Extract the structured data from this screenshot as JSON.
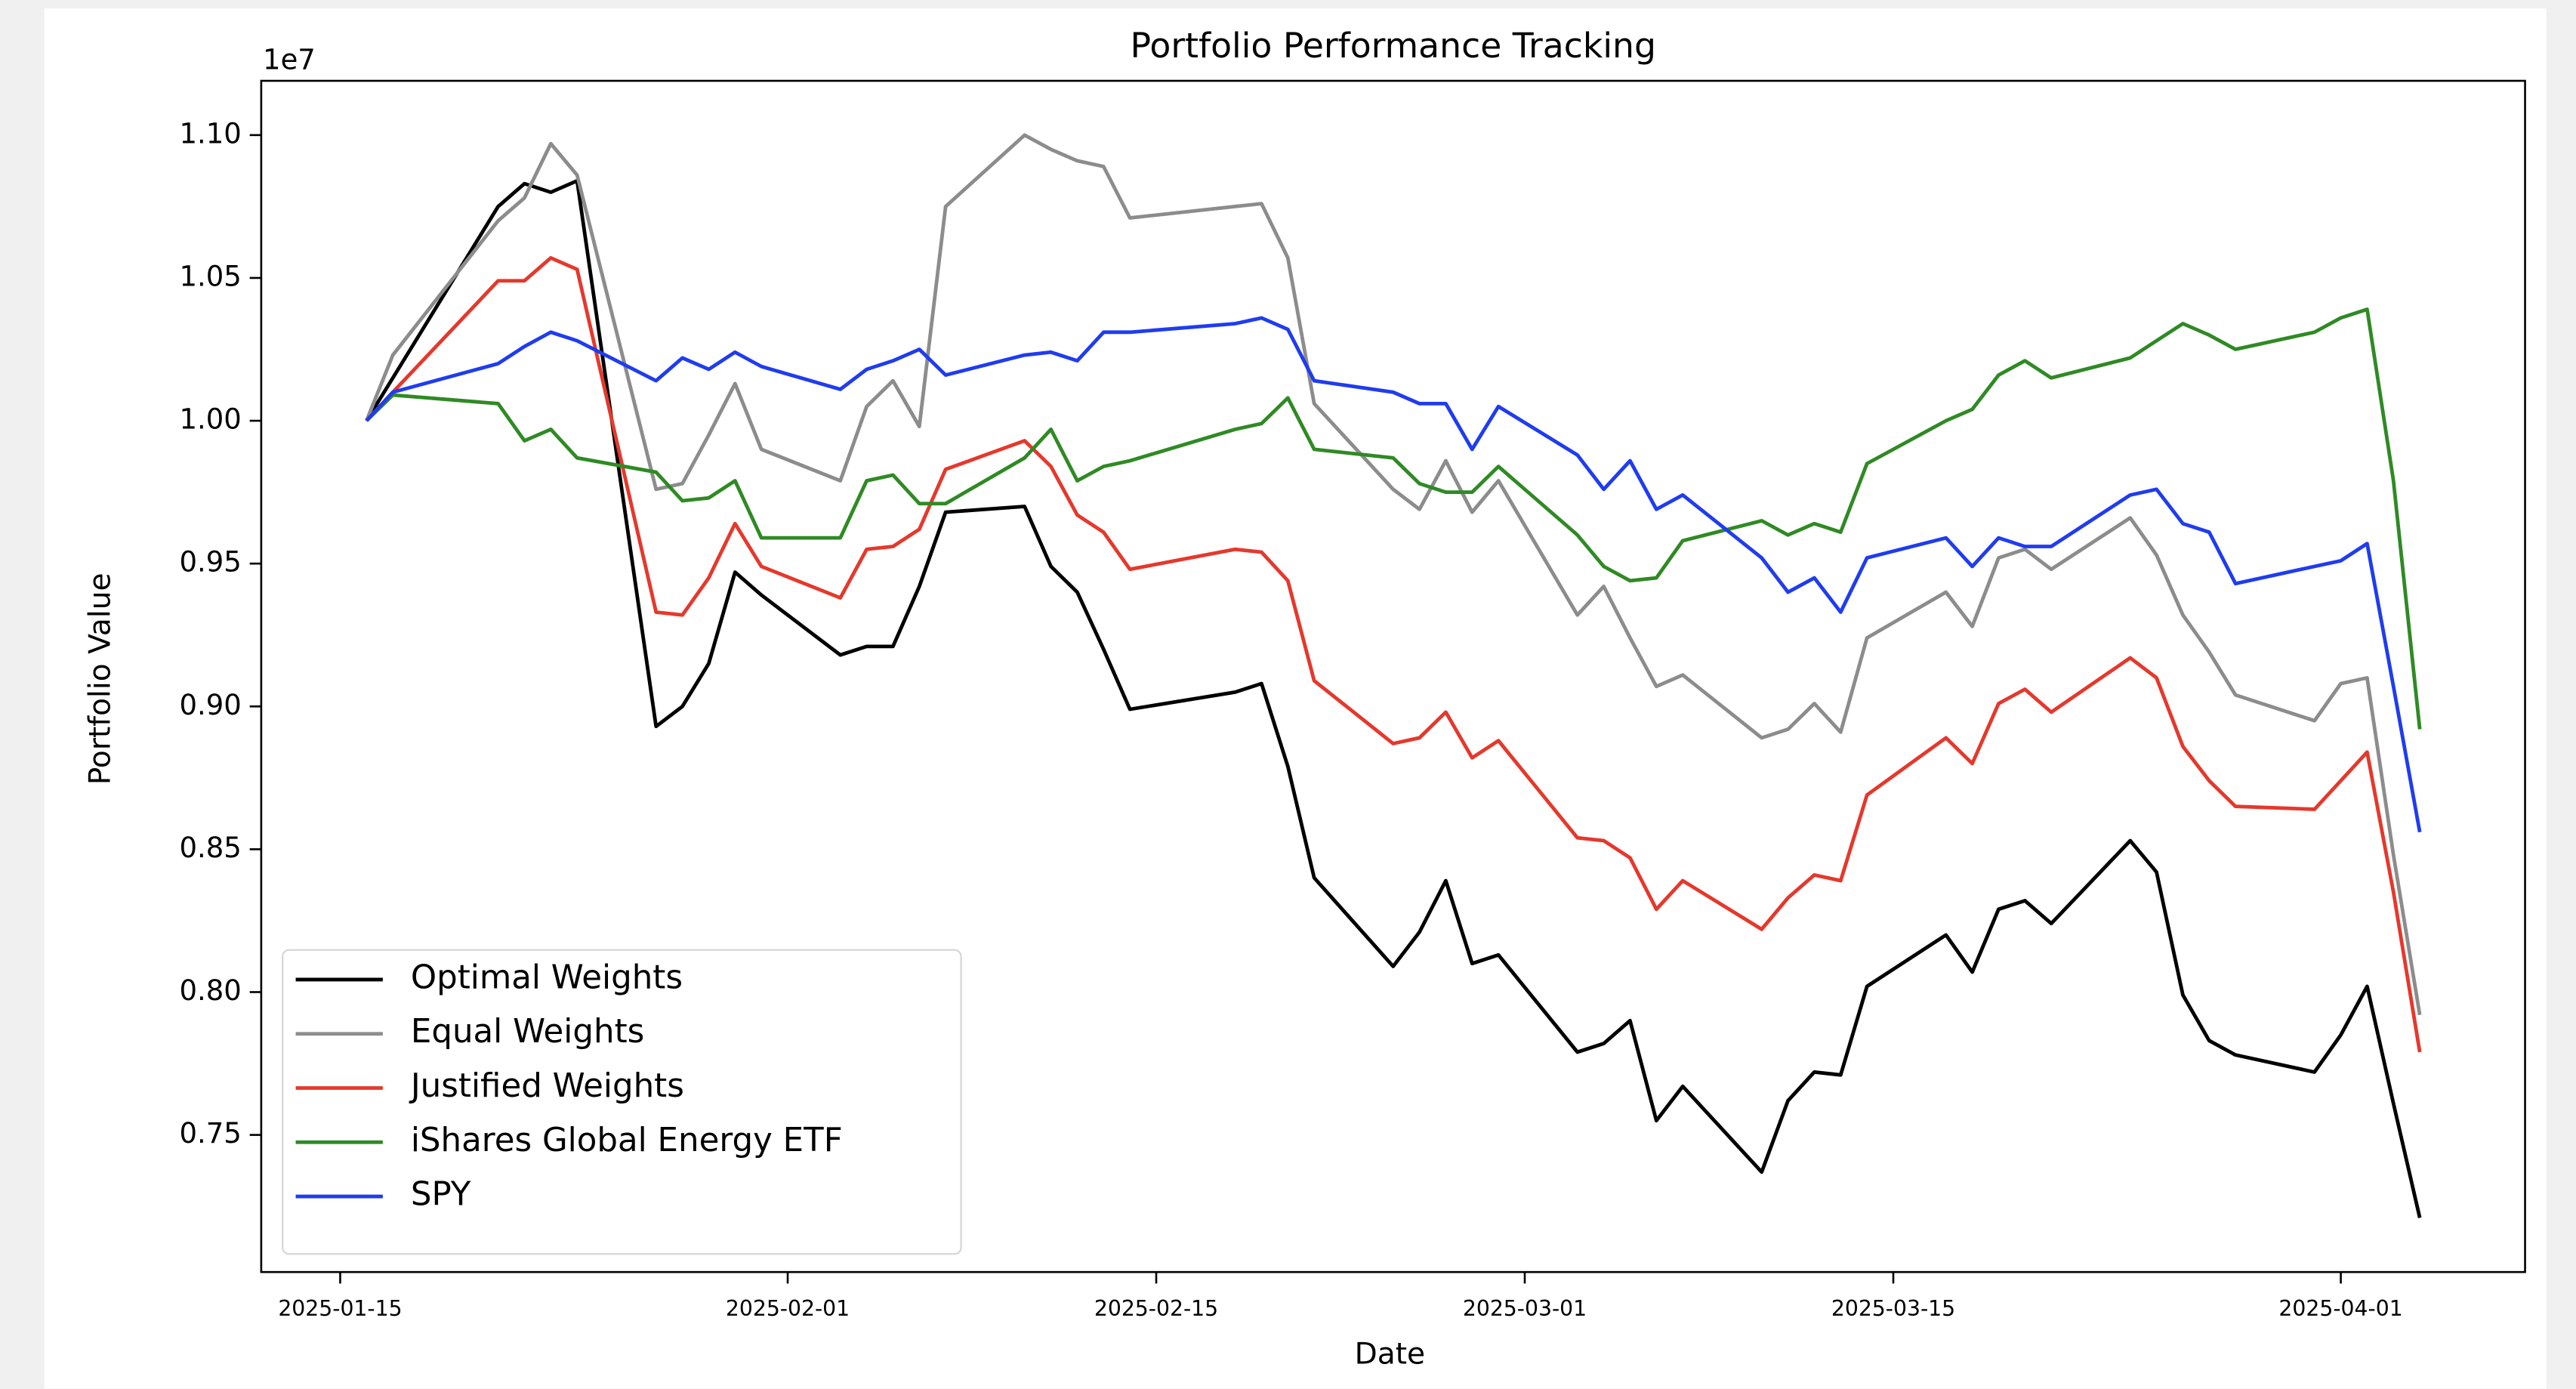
{
  "chart_data": {
    "type": "line",
    "title": "Portfolio Performance Tracking",
    "x_label": "Date",
    "y_label": "Portfolio Value",
    "y_offset_label": "1e7",
    "legend": "lower left",
    "grid": false,
    "x": [
      "2025-01-16",
      "2025-01-17",
      "2025-01-21",
      "2025-01-22",
      "2025-01-23",
      "2025-01-24",
      "2025-01-27",
      "2025-01-28",
      "2025-01-29",
      "2025-01-30",
      "2025-01-31",
      "2025-02-03",
      "2025-02-04",
      "2025-02-05",
      "2025-02-06",
      "2025-02-07",
      "2025-02-10",
      "2025-02-11",
      "2025-02-12",
      "2025-02-13",
      "2025-02-14",
      "2025-02-18",
      "2025-02-19",
      "2025-02-20",
      "2025-02-21",
      "2025-02-24",
      "2025-02-25",
      "2025-02-26",
      "2025-02-27",
      "2025-02-28",
      "2025-03-03",
      "2025-03-04",
      "2025-03-05",
      "2025-03-06",
      "2025-03-07",
      "2025-03-10",
      "2025-03-11",
      "2025-03-12",
      "2025-03-13",
      "2025-03-14",
      "2025-03-17",
      "2025-03-18",
      "2025-03-19",
      "2025-03-20",
      "2025-03-21",
      "2025-03-24",
      "2025-03-25",
      "2025-03-26",
      "2025-03-27",
      "2025-03-28",
      "2025-03-31",
      "2025-04-01",
      "2025-04-02",
      "2025-04-03",
      "2025-04-04"
    ],
    "xlim": [
      "2025-01-12",
      "2025-04-08"
    ],
    "xticks": [
      "2025-01-15",
      "2025-02-01",
      "2025-02-15",
      "2025-03-01",
      "2025-03-15",
      "2025-04-01"
    ],
    "ylim": [
      0.702,
      1.119
    ],
    "yticks": [
      0.75,
      {
        "value": 0.8,
        "label": "0.80"
      },
      0.85,
      {
        "value": 0.9,
        "label": "0.90"
      },
      0.95,
      {
        "value": 1.0,
        "label": "1.00"
      },
      1.05,
      {
        "value": 1.1,
        "label": "1.10"
      }
    ],
    "series": [
      {
        "name": "Optimal Weights",
        "color": "#000000",
        "values": [
          1.0,
          1.015,
          1.075,
          1.083,
          1.08,
          1.084,
          0.893,
          0.9,
          0.915,
          0.947,
          0.939,
          0.918,
          0.921,
          0.921,
          0.942,
          0.968,
          0.97,
          0.949,
          0.94,
          0.92,
          0.899,
          0.905,
          0.908,
          0.879,
          0.84,
          0.809,
          0.821,
          0.839,
          0.81,
          0.813,
          0.779,
          0.782,
          0.79,
          0.755,
          0.767,
          0.737,
          0.762,
          0.772,
          0.771,
          0.802,
          0.82,
          0.807,
          0.829,
          0.832,
          0.824,
          0.853,
          0.842,
          0.799,
          0.783,
          0.778,
          0.772,
          0.785,
          0.802,
          0.761,
          0.721
        ]
      },
      {
        "name": "Equal Weights",
        "color": "#8c8c8c",
        "values": [
          1.0,
          1.023,
          1.07,
          1.078,
          1.097,
          1.086,
          0.976,
          0.978,
          0.995,
          1.013,
          0.99,
          0.979,
          1.005,
          1.014,
          0.998,
          1.075,
          1.1,
          1.095,
          1.091,
          1.089,
          1.071,
          1.075,
          1.076,
          1.057,
          1.006,
          0.976,
          0.969,
          0.986,
          0.968,
          0.979,
          0.932,
          0.942,
          0.924,
          0.907,
          0.911,
          0.889,
          0.892,
          0.901,
          0.891,
          0.924,
          0.94,
          0.928,
          0.952,
          0.955,
          0.948,
          0.966,
          0.953,
          0.932,
          0.919,
          0.904,
          0.895,
          0.908,
          0.91,
          0.848,
          0.792
        ]
      },
      {
        "name": "Justified Weights",
        "color": "#e5382c",
        "values": [
          1.0,
          1.01,
          1.049,
          1.049,
          1.057,
          1.053,
          0.933,
          0.932,
          0.945,
          0.964,
          0.949,
          0.938,
          0.955,
          0.956,
          0.962,
          0.983,
          0.993,
          0.984,
          0.967,
          0.961,
          0.948,
          0.955,
          0.954,
          0.944,
          0.909,
          0.887,
          0.889,
          0.898,
          0.882,
          0.888,
          0.854,
          0.853,
          0.847,
          0.829,
          0.839,
          0.822,
          0.833,
          0.841,
          0.839,
          0.869,
          0.889,
          0.88,
          0.901,
          0.906,
          0.898,
          0.917,
          0.91,
          0.886,
          0.874,
          0.865,
          0.864,
          0.874,
          0.884,
          0.835,
          0.779
        ]
      },
      {
        "name": "iShares Global Energy ETF",
        "color": "#2f8a24",
        "values": [
          1.0,
          1.009,
          1.006,
          0.993,
          0.997,
          0.987,
          0.982,
          0.972,
          0.973,
          0.979,
          0.959,
          0.959,
          0.979,
          0.981,
          0.971,
          0.971,
          0.987,
          0.997,
          0.979,
          0.984,
          0.986,
          0.997,
          0.999,
          1.008,
          0.99,
          0.987,
          0.978,
          0.975,
          0.975,
          0.984,
          0.96,
          0.949,
          0.944,
          0.945,
          0.958,
          0.965,
          0.96,
          0.964,
          0.961,
          0.985,
          1.0,
          1.004,
          1.016,
          1.021,
          1.015,
          1.022,
          1.028,
          1.034,
          1.03,
          1.025,
          1.031,
          1.036,
          1.039,
          0.979,
          0.892
        ]
      },
      {
        "name": "SPY",
        "color": "#1f3cf0",
        "values": [
          1.0,
          1.01,
          1.02,
          1.026,
          1.031,
          1.028,
          1.014,
          1.022,
          1.018,
          1.024,
          1.019,
          1.011,
          1.018,
          1.021,
          1.025,
          1.016,
          1.023,
          1.024,
          1.021,
          1.031,
          1.031,
          1.034,
          1.036,
          1.032,
          1.014,
          1.01,
          1.006,
          1.006,
          0.99,
          1.005,
          0.988,
          0.976,
          0.986,
          0.969,
          0.974,
          0.952,
          0.94,
          0.945,
          0.933,
          0.952,
          0.959,
          0.949,
          0.959,
          0.956,
          0.956,
          0.974,
          0.976,
          0.964,
          0.961,
          0.943,
          0.949,
          0.951,
          0.957,
          0.907,
          0.856
        ]
      }
    ]
  }
}
